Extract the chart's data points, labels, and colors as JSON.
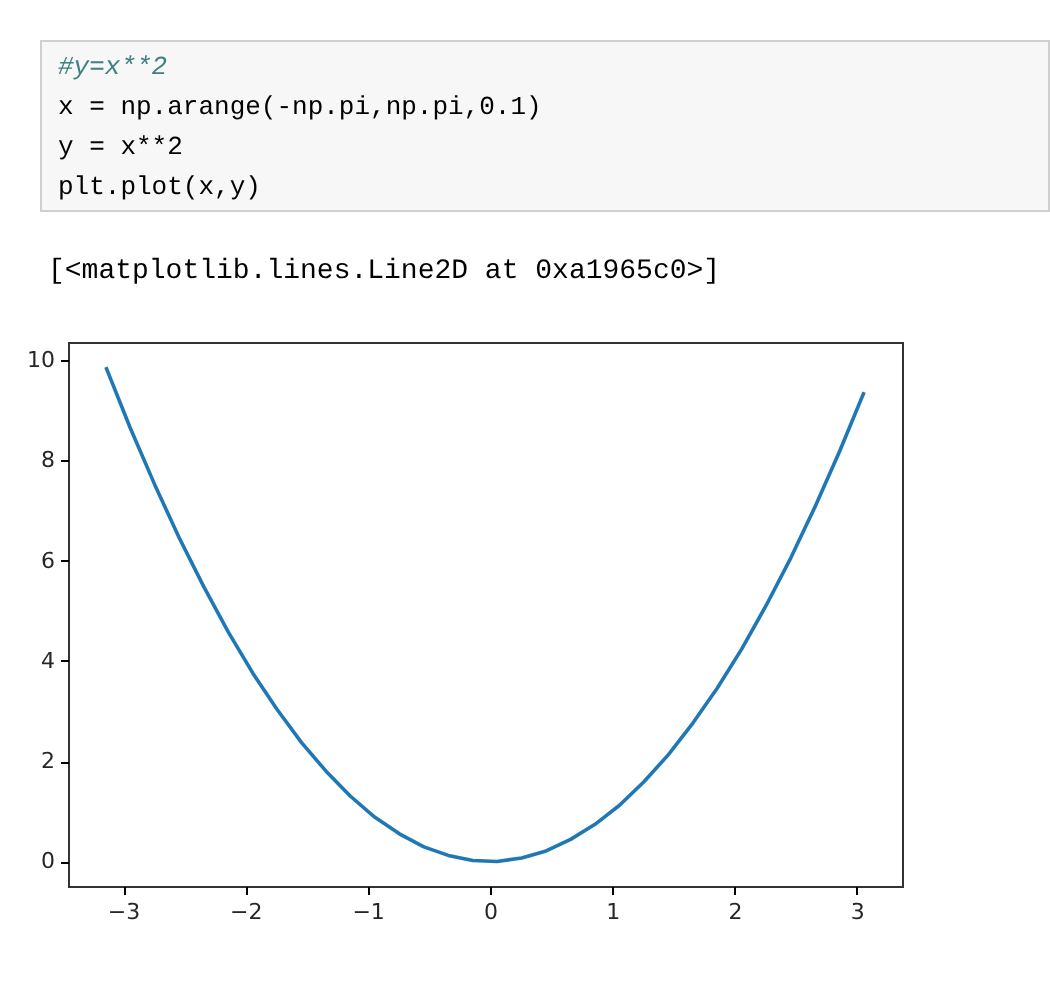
{
  "chart_data": {
    "type": "line",
    "annotations": [
      "#y=x**2",
      "x = np.arange(-np.pi,np.pi,0.1)",
      "y = x**2",
      "plt.plot(x,y)",
      "[<matplotlib.lines.Line2D at 0xa1965c0>]"
    ],
    "x": [
      -3.14,
      -2.94,
      -2.74,
      -2.54,
      -2.34,
      -2.14,
      -1.94,
      -1.74,
      -1.54,
      -1.34,
      -1.14,
      -0.94,
      -0.74,
      -0.54,
      -0.34,
      -0.14,
      0.06,
      0.26,
      0.46,
      0.66,
      0.86,
      1.06,
      1.26,
      1.46,
      1.66,
      1.86,
      2.06,
      2.26,
      2.46,
      2.66,
      2.86,
      3.06
    ],
    "series": [
      {
        "color": "#1f77b4",
        "values": [
          9.86,
          8.64,
          7.51,
          6.45,
          5.48,
          4.58,
          3.76,
          3.03,
          2.37,
          1.8,
          1.3,
          0.88,
          0.55,
          0.29,
          0.12,
          0.02,
          0.0,
          0.07,
          0.21,
          0.44,
          0.74,
          1.12,
          1.59,
          2.13,
          2.76,
          3.46,
          4.24,
          5.11,
          6.05,
          7.08,
          8.18,
          9.36
        ]
      }
    ],
    "xlim": [
      -3.45,
      3.37
    ],
    "ylim": [
      -0.49,
      10.36
    ],
    "xticks": [
      {
        "value": -3,
        "label": "−3"
      },
      {
        "value": -2,
        "label": "−2"
      },
      {
        "value": -1,
        "label": "−1"
      },
      0,
      1,
      2,
      3
    ],
    "yticks": [
      0,
      2,
      4,
      6,
      8,
      10
    ],
    "grid": false,
    "marker": "none",
    "line_style": "solid"
  }
}
